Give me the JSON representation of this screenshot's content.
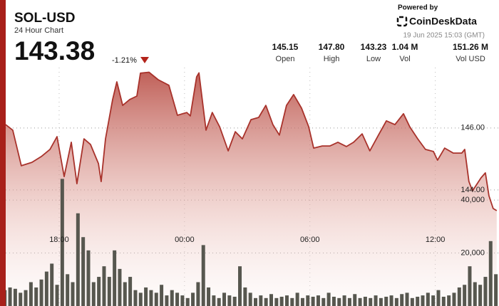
{
  "header": {
    "title": "SOL-USD",
    "subtitle": "24 Hour Chart",
    "price": "143.38",
    "change": "-1.21%",
    "powered_by": "Powered by",
    "brand": "CoinDeskData",
    "timestamp": "19 Jun 2025 15:03 (GMT)"
  },
  "stats": [
    {
      "value": "145.15",
      "label": "Open"
    },
    {
      "value": "147.80",
      "label": "High"
    },
    {
      "value": "143.23",
      "label": "Low"
    },
    {
      "value": "1.04 M",
      "label": "Vol"
    },
    {
      "value": "151.26 M",
      "label": "Vol USD"
    }
  ],
  "chart_data": [
    {
      "type": "line",
      "color": "#a8322b",
      "grid": true,
      "x": [
        0.44,
        0.78,
        1.19,
        1.7,
        2.15,
        2.56,
        2.9,
        3.24,
        3.58,
        3.85,
        4.19,
        4.5,
        4.88,
        5.01,
        5.22,
        5.56,
        5.76,
        6.04,
        6.38,
        6.72,
        6.89,
        7.3,
        7.74,
        8.25,
        8.66,
        9.11,
        9.28,
        9.58,
        9.69,
        10.03,
        10.33,
        10.68,
        11.09,
        11.43,
        11.77,
        12.18,
        12.55,
        12.89,
        13.23,
        13.54,
        13.88,
        14.22,
        14.6,
        14.94,
        15.18,
        15.59,
        15.96,
        16.34,
        16.75,
        17.09,
        17.5,
        17.87,
        18.28,
        18.66,
        19.07,
        19.48,
        19.78,
        20.16,
        20.53,
        20.91,
        21.11,
        21.45,
        21.86,
        22.27,
        22.41,
        22.61,
        22.78,
        23.19,
        23.4,
        23.57,
        23.77,
        23.94
      ],
      "values": [
        146.11,
        145.93,
        144.78,
        144.89,
        145.08,
        145.31,
        145.72,
        144.43,
        145.54,
        144.2,
        145.65,
        145.47,
        144.85,
        144.27,
        145.65,
        146.92,
        147.49,
        146.73,
        146.92,
        147.03,
        147.77,
        147.8,
        147.56,
        147.38,
        146.41,
        146.5,
        146.39,
        147.65,
        147.78,
        145.93,
        146.5,
        146.04,
        145.26,
        145.88,
        145.65,
        146.27,
        146.34,
        146.73,
        146.11,
        145.77,
        146.73,
        147.08,
        146.64,
        146.04,
        145.35,
        145.42,
        145.42,
        145.54,
        145.4,
        145.54,
        145.81,
        145.26,
        145.77,
        146.23,
        146.11,
        146.46,
        146.04,
        145.65,
        145.31,
        145.24,
        144.96,
        145.35,
        145.19,
        145.19,
        145.31,
        144.27,
        143.97,
        144.39,
        144.55,
        143.81,
        143.4,
        143.33
      ],
      "xlim": [
        0.17,
        24.05
      ],
      "ylim": [
        140.25,
        147.95
      ],
      "xticks": [
        {
          "value": 3,
          "label": "18:00"
        },
        {
          "value": 9,
          "label": "00:00"
        },
        {
          "value": 15,
          "label": "06:00"
        },
        {
          "value": 21,
          "label": "12:00"
        }
      ],
      "yticks": [
        {
          "value": 146,
          "label": "146.00"
        },
        {
          "value": 144,
          "label": "144.00"
        }
      ]
    },
    {
      "type": "bar",
      "color": "#57574f",
      "grid": true,
      "x": [
        0.4,
        0.65,
        0.9,
        1.15,
        1.4,
        1.65,
        1.9,
        2.15,
        2.4,
        2.65,
        2.9,
        3.15,
        3.4,
        3.65,
        3.9,
        4.15,
        4.4,
        4.65,
        4.9,
        5.15,
        5.4,
        5.65,
        5.9,
        6.15,
        6.4,
        6.65,
        6.9,
        7.15,
        7.4,
        7.65,
        7.9,
        8.15,
        8.4,
        8.65,
        8.9,
        9.15,
        9.4,
        9.65,
        9.9,
        10.15,
        10.4,
        10.65,
        10.9,
        11.15,
        11.4,
        11.65,
        11.9,
        12.15,
        12.4,
        12.65,
        12.9,
        13.15,
        13.4,
        13.65,
        13.9,
        14.15,
        14.4,
        14.65,
        14.9,
        15.15,
        15.4,
        15.65,
        15.9,
        16.15,
        16.4,
        16.65,
        16.9,
        17.15,
        17.4,
        17.65,
        17.9,
        18.15,
        18.4,
        18.65,
        18.9,
        19.15,
        19.4,
        19.65,
        19.9,
        20.15,
        20.4,
        20.65,
        20.9,
        21.15,
        21.4,
        21.65,
        21.9,
        22.15,
        22.4,
        22.65,
        22.9,
        23.15,
        23.4,
        23.65,
        23.9
      ],
      "values": [
        6000,
        7000,
        6500,
        5000,
        6000,
        9000,
        7000,
        10000,
        13000,
        16000,
        8000,
        48000,
        12000,
        9000,
        35000,
        26000,
        21000,
        9000,
        11000,
        15000,
        11000,
        21000,
        14000,
        9000,
        11000,
        6000,
        5000,
        7000,
        6000,
        5000,
        8000,
        4000,
        6000,
        5000,
        4000,
        3000,
        5000,
        9000,
        23000,
        7000,
        4000,
        3000,
        5000,
        4000,
        3500,
        15000,
        7000,
        5000,
        3000,
        4000,
        3000,
        4500,
        3000,
        3500,
        4000,
        3000,
        5000,
        3000,
        4000,
        3500,
        4000,
        3000,
        5000,
        3500,
        3000,
        4000,
        3000,
        4500,
        3000,
        3500,
        3000,
        4000,
        3000,
        3500,
        4000,
        3000,
        4500,
        5000,
        3000,
        3500,
        4000,
        5000,
        4000,
        6000,
        3500,
        4000,
        5000,
        7000,
        8000,
        15000,
        9000,
        8000,
        11000,
        24500,
        12000
      ],
      "xlim": [
        0.17,
        24.05
      ],
      "ylim": [
        0,
        90000
      ],
      "yticks": [
        {
          "value": 20000,
          "label": "20,000"
        },
        {
          "value": 40000,
          "label": "40,000"
        }
      ]
    }
  ]
}
